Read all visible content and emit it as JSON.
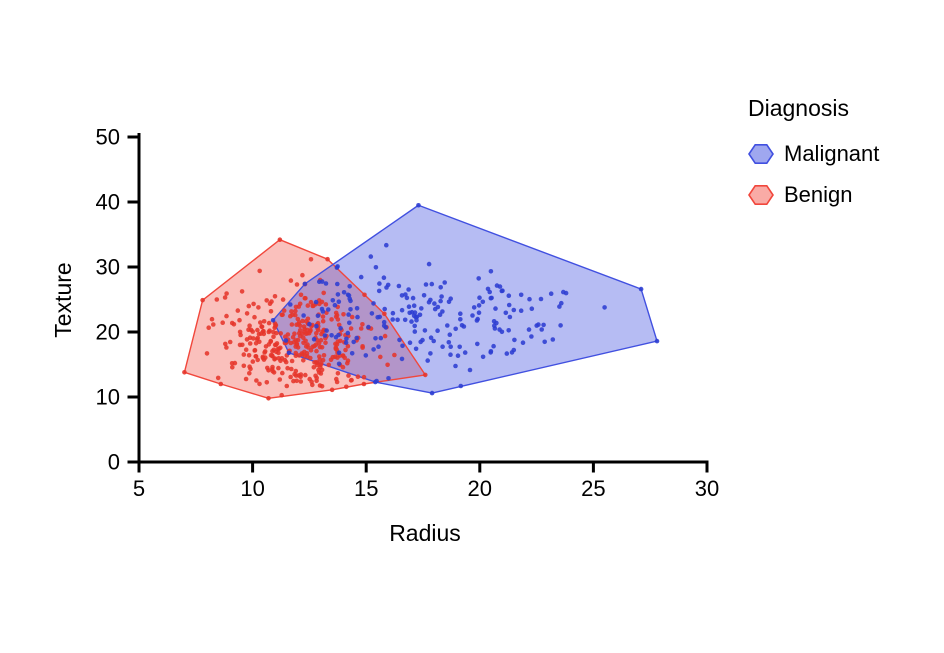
{
  "chart_data": {
    "type": "scatter",
    "title": "",
    "xlabel": "Radius",
    "ylabel": "Texture",
    "xlim": [
      5,
      30
    ],
    "ylim": [
      0,
      50
    ],
    "xticks": [
      5,
      10,
      15,
      20,
      25,
      30
    ],
    "yticks": [
      0,
      10,
      20,
      30,
      40,
      50
    ],
    "grid": false,
    "background": "#ffffff",
    "axis_color": "#000000",
    "legend": {
      "title": "Diagnosis",
      "position": "right",
      "marker_shape": "hexagon"
    },
    "series": [
      {
        "name": "Malignant",
        "n_points": 212,
        "point_color": "#2e3ed2",
        "hull_stroke": "#4150e0",
        "hull_fill_rgba": [
          63,
          79,
          224,
          0.38
        ],
        "cluster_mean": [
          17.6,
          21.5
        ],
        "cluster_sd": [
          3.5,
          4.0
        ],
        "seed": 7,
        "hull": [
          [
            17.3,
            39.5
          ],
          [
            27.1,
            26.6
          ],
          [
            27.8,
            18.6
          ],
          [
            17.9,
            10.6
          ],
          [
            15.4,
            12.3
          ],
          [
            11.6,
            16.8
          ],
          [
            10.9,
            21.8
          ],
          [
            12.3,
            27.4
          ]
        ]
      },
      {
        "name": "Benign",
        "n_points": 357,
        "point_color": "#e5352b",
        "hull_stroke": "#f1473c",
        "hull_fill_rgba": [
          241,
          71,
          60,
          0.34
        ],
        "cluster_mean": [
          12.1,
          18.0
        ],
        "cluster_sd": [
          1.75,
          4.2
        ],
        "seed": 13,
        "hull": [
          [
            11.2,
            34.2
          ],
          [
            13.3,
            31.2
          ],
          [
            15.8,
            22.8
          ],
          [
            17.6,
            13.4
          ],
          [
            14.9,
            12.0
          ],
          [
            13.5,
            11.1
          ],
          [
            10.7,
            9.8
          ],
          [
            8.6,
            12.0
          ],
          [
            7.0,
            13.8
          ],
          [
            7.8,
            24.9
          ]
        ]
      }
    ]
  }
}
